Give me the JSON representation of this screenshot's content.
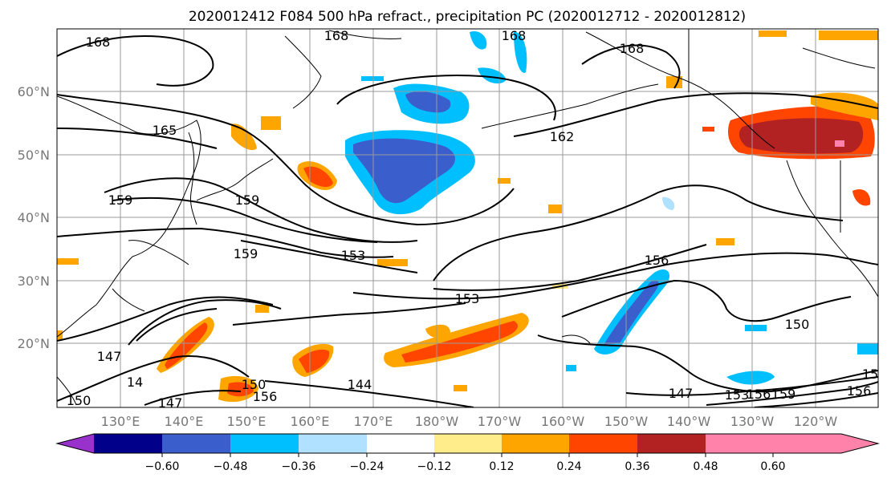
{
  "title": "2020012412 F084 500 hPa refract., precipitation PC (2020012712 - 2020012812)",
  "lat_labels": [
    "60°N",
    "50°N",
    "40°N",
    "30°N",
    "20°N"
  ],
  "lon_labels": [
    "130°E",
    "140°E",
    "150°E",
    "160°E",
    "170°E",
    "180°W",
    "170°W",
    "160°W",
    "150°W",
    "140°W",
    "130°W",
    "120°W"
  ],
  "colorbar": {
    "colors": [
      "#9932cc",
      "#00008b",
      "#3a5fcd",
      "#00bfff",
      "#b0e2ff",
      "#ffffff",
      "#ffec8b",
      "#ffa500",
      "#ff4500",
      "#b22222",
      "#ff82ab"
    ],
    "tick_labels": [
      "−0.60",
      "−0.48",
      "−0.36",
      "−0.24",
      "−0.12",
      "0.12",
      "0.24",
      "0.36",
      "0.48",
      "0.60"
    ]
  },
  "contour_labels": [
    "168",
    "168",
    "168",
    "168",
    "165",
    "162",
    "159",
    "159",
    "159",
    "153",
    "156",
    "153",
    "150",
    "147",
    "14",
    "147",
    "150",
    "156",
    "144",
    "147",
    "153",
    "156",
    "159",
    "156",
    "15",
    "150"
  ]
}
